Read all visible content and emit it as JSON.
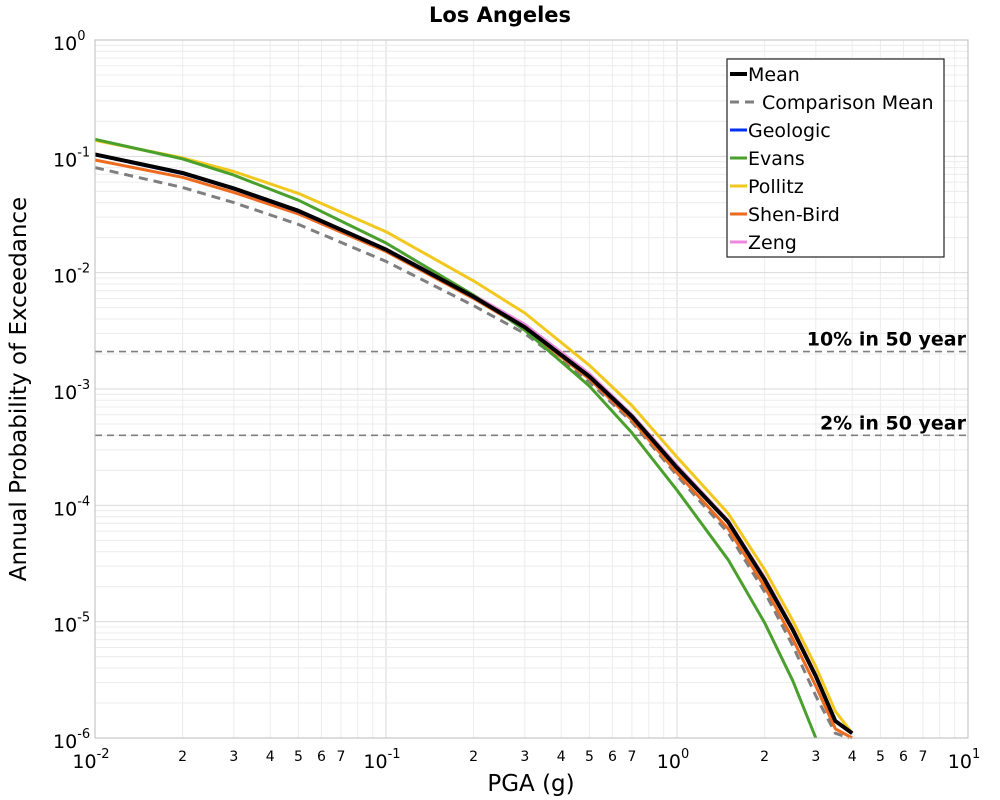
{
  "chart_data": {
    "type": "line",
    "title": "Los Angeles",
    "xlabel": "PGA (g)",
    "ylabel": "Annual Probability of Exceedance",
    "x_scale": "log",
    "y_scale": "log",
    "xlim": [
      0.01,
      10
    ],
    "ylim": [
      1e-06,
      1
    ],
    "grid": true,
    "legend_position": "top-right",
    "x_major_ticks": [
      {
        "base": "10",
        "exp": "-2"
      },
      {
        "base": "10",
        "exp": "-1"
      },
      {
        "base": "10",
        "exp": "0"
      },
      {
        "base": "10",
        "exp": "1"
      }
    ],
    "y_major_ticks": [
      {
        "base": "10",
        "exp": "0"
      },
      {
        "base": "10",
        "exp": "-1"
      },
      {
        "base": "10",
        "exp": "-2"
      },
      {
        "base": "10",
        "exp": "-3"
      },
      {
        "base": "10",
        "exp": "-4"
      },
      {
        "base": "10",
        "exp": "-5"
      },
      {
        "base": "10",
        "exp": "-6"
      }
    ],
    "x_minor_tick_labels": [
      "2",
      "3",
      "4",
      "5",
      "6",
      "7"
    ],
    "reference_lines": [
      {
        "label": "10% in 50 year",
        "y": 0.0021
      },
      {
        "label": "2% in 50 year",
        "y": 0.0004
      }
    ],
    "series": [
      {
        "name": "Mean",
        "color": "#000000",
        "style": "solid",
        "x": [
          0.01,
          0.02,
          0.03,
          0.05,
          0.1,
          0.2,
          0.3,
          0.5,
          0.7,
          1.0,
          1.5,
          2.0,
          2.5,
          3.0,
          3.5,
          4.0
        ],
        "y": [
          0.104,
          0.072,
          0.053,
          0.034,
          0.0158,
          0.0062,
          0.0034,
          0.00128,
          0.00058,
          0.00021,
          7.2e-05,
          2.3e-05,
          8.5e-06,
          3.4e-06,
          1.4e-06,
          1.1e-06
        ]
      },
      {
        "name": "Comparison Mean",
        "color": "#7f7f7f",
        "style": "dashed",
        "x": [
          0.01,
          0.02,
          0.03,
          0.05,
          0.1,
          0.2,
          0.3,
          0.5,
          0.7,
          1.0,
          1.5,
          2.0,
          2.5,
          3.0,
          3.5,
          3.9
        ],
        "y": [
          0.08,
          0.054,
          0.04,
          0.026,
          0.0125,
          0.0052,
          0.003,
          0.00115,
          0.00052,
          0.00018,
          5.8e-05,
          1.8e-05,
          6.2e-06,
          2.3e-06,
          1.1e-06,
          1e-06
        ]
      },
      {
        "name": "Geologic",
        "color": "#0033ee",
        "style": "solid",
        "x": [
          0.01,
          0.02,
          0.03,
          0.05,
          0.1,
          0.2,
          0.3,
          0.5,
          0.7,
          1.0,
          1.5,
          2.0,
          2.5,
          3.0,
          3.5,
          4.0
        ],
        "y": [
          0.103,
          0.071,
          0.0525,
          0.0335,
          0.0157,
          0.0062,
          0.0034,
          0.00128,
          0.00058,
          0.00021,
          7.2e-05,
          2.3e-05,
          8.5e-06,
          3.4e-06,
          1.4e-06,
          1.1e-06
        ]
      },
      {
        "name": "Evans",
        "color": "#4aa02c",
        "style": "solid",
        "x": [
          0.01,
          0.02,
          0.03,
          0.05,
          0.1,
          0.2,
          0.3,
          0.5,
          0.7,
          1.0,
          1.5,
          2.0,
          2.5,
          3.0
        ],
        "y": [
          0.14,
          0.095,
          0.069,
          0.042,
          0.018,
          0.0064,
          0.0032,
          0.00106,
          0.00042,
          0.000135,
          3.4e-05,
          9.8e-06,
          3.1e-06,
          1e-06
        ]
      },
      {
        "name": "Pollitz",
        "color": "#f2c81f",
        "style": "solid",
        "x": [
          0.01,
          0.02,
          0.03,
          0.05,
          0.1,
          0.2,
          0.3,
          0.5,
          0.7,
          1.0,
          1.5,
          2.0,
          2.5,
          3.0,
          3.5,
          4.0
        ],
        "y": [
          0.137,
          0.097,
          0.074,
          0.048,
          0.0225,
          0.0085,
          0.0045,
          0.0016,
          0.00072,
          0.00026,
          8.5e-05,
          2.8e-05,
          1.02e-05,
          4.1e-06,
          1.7e-06,
          1.1e-06
        ]
      },
      {
        "name": "Shen-Bird",
        "color": "#ee6a1c",
        "style": "solid",
        "x": [
          0.01,
          0.02,
          0.03,
          0.05,
          0.1,
          0.2,
          0.3,
          0.5,
          0.7,
          1.0,
          1.5,
          2.0,
          2.5,
          3.0,
          3.5,
          4.0
        ],
        "y": [
          0.093,
          0.066,
          0.049,
          0.032,
          0.0152,
          0.006,
          0.0033,
          0.00122,
          0.00054,
          0.00019,
          6.3e-05,
          2e-05,
          7.1e-06,
          2.8e-06,
          1.2e-06,
          1e-06
        ]
      },
      {
        "name": "Zeng",
        "color": "#ee88dd",
        "style": "solid",
        "x": [
          0.01,
          0.02,
          0.03,
          0.05,
          0.1,
          0.2,
          0.3,
          0.5,
          0.7,
          1.0,
          1.5,
          2.0,
          2.5,
          3.0,
          3.5,
          4.0
        ],
        "y": [
          0.104,
          0.072,
          0.053,
          0.034,
          0.016,
          0.0064,
          0.0036,
          0.00135,
          0.0006,
          0.00022,
          7.4e-05,
          2.4e-05,
          8.8e-06,
          3.5e-06,
          1.4e-06,
          1.1e-06
        ]
      }
    ]
  }
}
